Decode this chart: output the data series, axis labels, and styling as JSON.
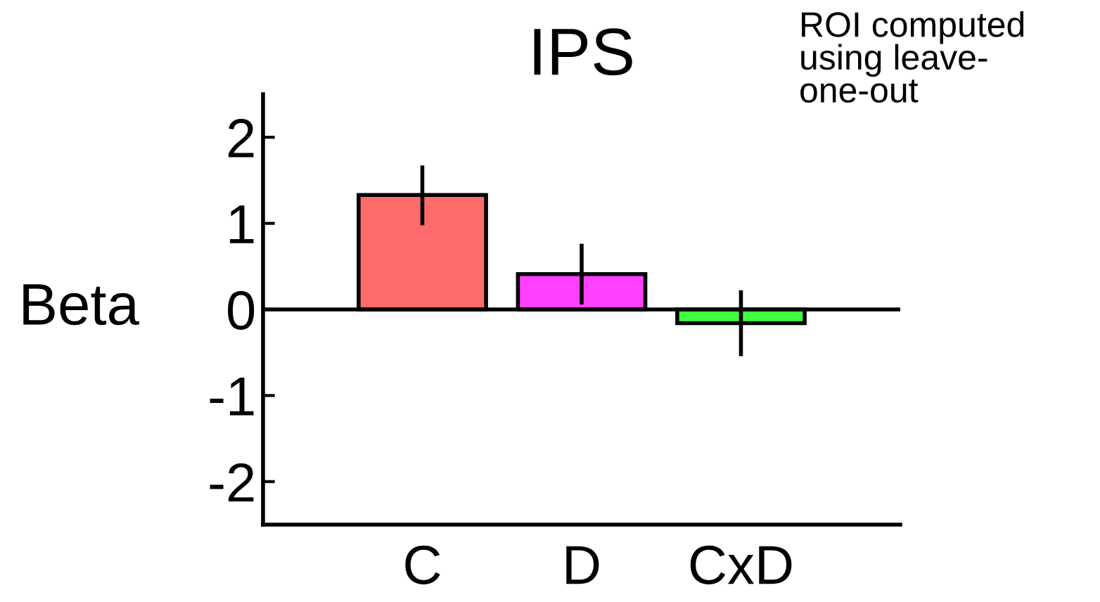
{
  "chart_data": {
    "type": "bar",
    "title": "IPS",
    "ylabel": "Beta",
    "categories": [
      "C",
      "D",
      "CxD"
    ],
    "values": [
      1.33,
      0.41,
      -0.16
    ],
    "errors": [
      [
        1.0,
        1.65
      ],
      [
        0.08,
        0.74
      ],
      [
        -0.52,
        0.2
      ]
    ],
    "colors": [
      "#ff6b6b",
      "#ff40ff",
      "#40ff40"
    ],
    "ylim": [
      -2.5,
      2.5
    ],
    "yticks": [
      -2,
      -1,
      0,
      1,
      2
    ],
    "ref_lines": [
      {
        "axis": "y",
        "value": 0,
        "color": "#000000"
      }
    ],
    "annotations": [
      "ROI computed\nusing leave-\none-out"
    ],
    "grid": false,
    "legend": false
  }
}
